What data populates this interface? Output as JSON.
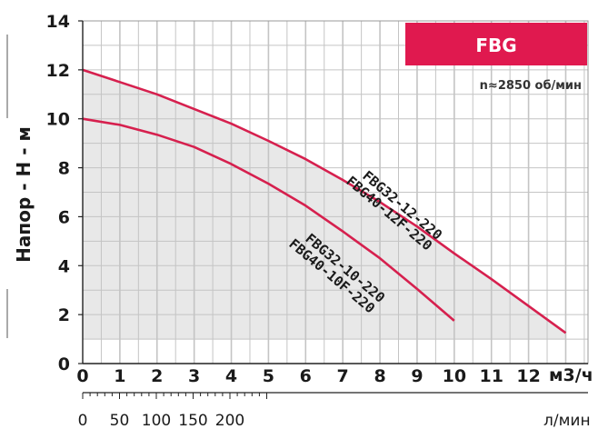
{
  "chart_data": {
    "type": "line",
    "badge": "FBG",
    "speed_note": "n≈2850 об/мин",
    "ylabel": "Напор - Н - м",
    "xunit_primary": "м3/ч",
    "xunit_secondary": "л/мин",
    "ylim": [
      0,
      14
    ],
    "xlim": [
      0,
      13.6
    ],
    "grid": true,
    "y_ticks": [
      "0",
      "2",
      "4",
      "6",
      "8",
      "10",
      "12",
      "14"
    ],
    "x_ticks": [
      "0",
      "1",
      "2",
      "3",
      "4",
      "5",
      "6",
      "7",
      "8",
      "9",
      "10",
      "11",
      "12"
    ],
    "x2_ticks": [
      "0",
      "50",
      "100",
      "150",
      "200"
    ],
    "series": [
      {
        "name": "FBG32-12-220\nFBG40-12F-220",
        "label_lines": [
          "FBG32-12-220",
          "FBG40-12F-220"
        ],
        "color": "#d6204e",
        "x": [
          0,
          1,
          2,
          3,
          4,
          5,
          6,
          7,
          8,
          9,
          10,
          11,
          12,
          13
        ],
        "y": [
          12.0,
          11.5,
          11.0,
          10.4,
          9.8,
          9.1,
          8.35,
          7.5,
          6.6,
          5.6,
          4.5,
          3.45,
          2.35,
          1.25
        ]
      },
      {
        "name": "FBG32-10-220\nFBG40-10F-220",
        "label_lines": [
          "FBG32-10-220",
          "FBG40-10F-220"
        ],
        "color": "#d6204e",
        "x": [
          0,
          1,
          2,
          3,
          4,
          5,
          6,
          7,
          8,
          9,
          10
        ],
        "y": [
          10.0,
          9.75,
          9.35,
          8.85,
          8.15,
          7.35,
          6.45,
          5.4,
          4.3,
          3.05,
          1.75
        ]
      }
    ],
    "band_color": "#e8e8e8",
    "grid_color": "#c4c4c4",
    "accent": "#e0194f"
  }
}
